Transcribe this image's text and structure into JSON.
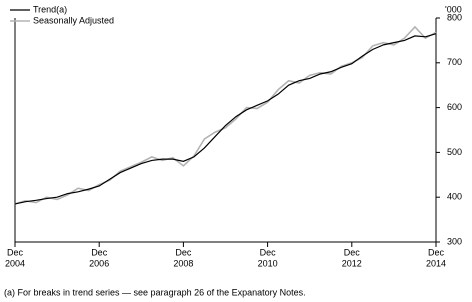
{
  "chart_data": {
    "type": "line",
    "unit_label": "'000",
    "x": [
      "Dec 2004",
      "Mar 2005",
      "Jun 2005",
      "Sep 2005",
      "Dec 2005",
      "Mar 2006",
      "Jun 2006",
      "Sep 2006",
      "Dec 2006",
      "Mar 2007",
      "Jun 2007",
      "Sep 2007",
      "Dec 2007",
      "Mar 2008",
      "Jun 2008",
      "Sep 2008",
      "Dec 2008",
      "Mar 2009",
      "Jun 2009",
      "Sep 2009",
      "Dec 2009",
      "Mar 2010",
      "Jun 2010",
      "Sep 2010",
      "Dec 2010",
      "Mar 2011",
      "Jun 2011",
      "Sep 2011",
      "Dec 2011",
      "Mar 2012",
      "Jun 2012",
      "Sep 2012",
      "Dec 2012",
      "Mar 2013",
      "Jun 2013",
      "Sep 2013",
      "Dec 2013",
      "Mar 2014",
      "Jun 2014",
      "Sep 2014",
      "Dec 2014"
    ],
    "series": [
      {
        "name": "Trend(a)",
        "color": "#000000",
        "width": 1.2,
        "values": [
          385,
          390,
          393,
          397,
          400,
          408,
          412,
          418,
          425,
          440,
          455,
          465,
          475,
          482,
          485,
          485,
          480,
          490,
          510,
          535,
          560,
          580,
          595,
          605,
          615,
          630,
          650,
          660,
          665,
          675,
          680,
          690,
          698,
          715,
          730,
          740,
          745,
          750,
          760,
          758,
          765
        ]
      },
      {
        "name": "Seasonally Adjusted",
        "color": "#b3b3b3",
        "width": 1.6,
        "values": [
          385,
          392,
          388,
          400,
          395,
          405,
          420,
          415,
          428,
          438,
          458,
          468,
          478,
          490,
          482,
          488,
          470,
          492,
          530,
          545,
          555,
          575,
          600,
          598,
          612,
          640,
          660,
          655,
          672,
          678,
          675,
          692,
          700,
          712,
          738,
          745,
          740,
          755,
          780,
          755,
          768
        ]
      }
    ],
    "ylim": [
      300,
      800
    ],
    "yticks": [
      300,
      400,
      500,
      600,
      700,
      800
    ],
    "xticks": [
      {
        "value": "Dec 2004",
        "label": [
          "Dec",
          "2004"
        ]
      },
      {
        "value": "Dec 2006",
        "label": [
          "Dec",
          "2006"
        ]
      },
      {
        "value": "Dec 2008",
        "label": [
          "Dec",
          "2008"
        ]
      },
      {
        "value": "Dec 2010",
        "label": [
          "Dec",
          "2010"
        ]
      },
      {
        "value": "Dec 2012",
        "label": [
          "Dec",
          "2012"
        ]
      },
      {
        "value": "Dec 2014",
        "label": [
          "Dec",
          "2014"
        ]
      }
    ],
    "footnote": "(a) For breaks in trend series — see paragraph 26 of the Expanatory Notes."
  }
}
